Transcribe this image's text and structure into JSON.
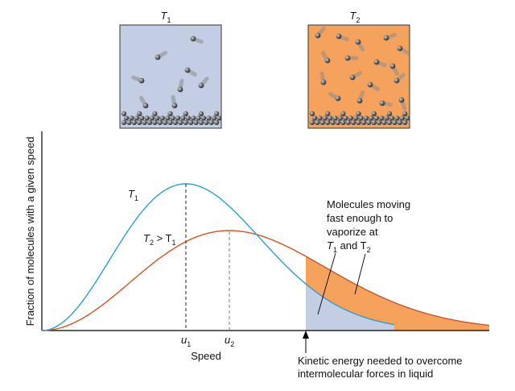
{
  "boxes": {
    "left": {
      "label": "T",
      "label_sub": "1",
      "fill": "#c3cde3"
    },
    "right": {
      "label": "T",
      "label_sub": "2",
      "fill": "#f5a35c"
    }
  },
  "axes": {
    "ylabel": "Fraction of molecules with a given speed",
    "xlabel": "Speed"
  },
  "curves": {
    "t1": {
      "label": "T",
      "label_sub": "1",
      "color": "#2a9fd4"
    },
    "t2": {
      "label_a": "T",
      "label_a_sub": "2",
      "label_mid": " > T",
      "label_b_sub": "1",
      "color": "#d2531f"
    }
  },
  "ticks": {
    "u1": {
      "label": "u",
      "sub": "1"
    },
    "u2": {
      "label": "u",
      "sub": "2"
    }
  },
  "annotation": {
    "line1": "Molecules moving",
    "line2": "fast enough to",
    "line3": "vaporize at",
    "line4_a": "T",
    "line4_a_sub": "1",
    "line4_mid": " and T",
    "line4_b_sub": "2"
  },
  "threshold": {
    "line1": "Kinetic energy needed to overcome",
    "line2": "intermolecular forces in liquid"
  },
  "colors": {
    "fill_t1": "#c3cde3",
    "fill_t2": "#f5a35c",
    "molecule": "#55575a"
  }
}
